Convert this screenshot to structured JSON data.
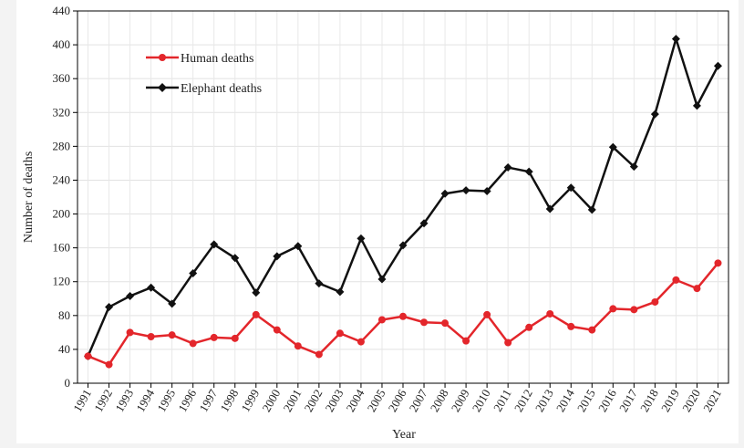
{
  "chart_data": {
    "type": "line",
    "title": "",
    "xlabel": "Year",
    "ylabel": "Number of deaths",
    "ylim": [
      0,
      440
    ],
    "yticks": [
      0,
      40,
      80,
      120,
      160,
      200,
      240,
      280,
      320,
      360,
      400,
      440
    ],
    "grid": "vertical and horizontal light gridlines",
    "legend_position": "top-left",
    "categories": [
      "1991",
      "1992",
      "1993",
      "1994",
      "1995",
      "1996",
      "1997",
      "1998",
      "1999",
      "2000",
      "2001",
      "2002",
      "2003",
      "2004",
      "2005",
      "2006",
      "2007",
      "2008",
      "2009",
      "2010",
      "2011",
      "2012",
      "2013",
      "2014",
      "2015",
      "2016",
      "2017",
      "2018",
      "2019",
      "2020",
      "2021"
    ],
    "series": [
      {
        "name": "Human deaths",
        "color": "#e3262b",
        "marker": "circle",
        "values": [
          32,
          22,
          60,
          55,
          57,
          47,
          54,
          53,
          81,
          63,
          44,
          34,
          59,
          49,
          75,
          79,
          72,
          71,
          50,
          81,
          48,
          66,
          82,
          67,
          63,
          88,
          87,
          96,
          122,
          112,
          142
        ]
      },
      {
        "name": "Elephant deaths",
        "color": "#111111",
        "marker": "diamond",
        "values": [
          32,
          90,
          103,
          113,
          94,
          130,
          164,
          148,
          107,
          150,
          162,
          118,
          108,
          171,
          123,
          163,
          189,
          224,
          228,
          227,
          255,
          250,
          206,
          231,
          205,
          279,
          256,
          318,
          407,
          328,
          375
        ]
      }
    ]
  }
}
